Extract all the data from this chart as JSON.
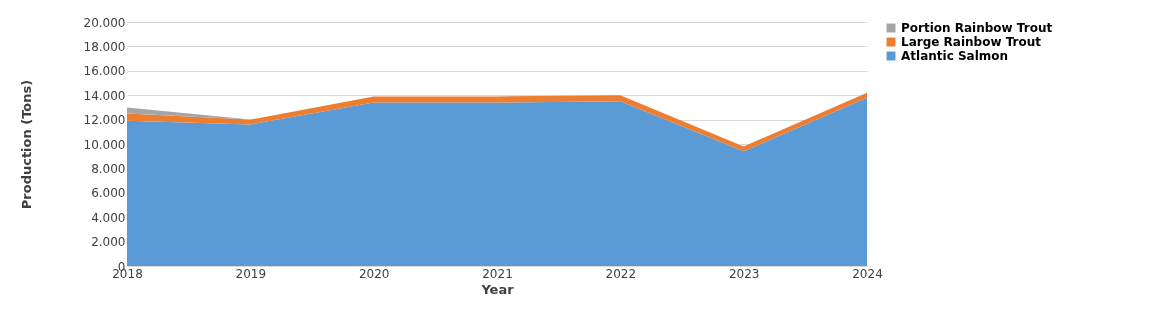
{
  "chart_data": {
    "type": "area",
    "stacked": true,
    "xlabel": "Year",
    "ylabel": "Production (Tons)",
    "categories": [
      "2018",
      "2019",
      "2020",
      "2021",
      "2022",
      "2023",
      "2024"
    ],
    "series": [
      {
        "name": "Atlantic Salmon",
        "color": "#5b9bd5",
        "values": [
          11900,
          11600,
          13400,
          13400,
          13500,
          9400,
          13800
        ]
      },
      {
        "name": "Large Rainbow Trout",
        "color": "#ed7d31",
        "values": [
          600,
          400,
          500,
          500,
          500,
          400,
          400
        ]
      },
      {
        "name": "Portion Rainbow Trout",
        "color": "#a5a5a5",
        "values": [
          500,
          0,
          0,
          0,
          0,
          0,
          0
        ]
      }
    ],
    "ylim": [
      0,
      20000
    ],
    "yticks": [
      {
        "value": 0,
        "label": "0"
      },
      {
        "value": 2000,
        "label": "2.000"
      },
      {
        "value": 4000,
        "label": "4.000"
      },
      {
        "value": 6000,
        "label": "6.000"
      },
      {
        "value": 8000,
        "label": "8.000"
      },
      {
        "value": 10000,
        "label": "10.000"
      },
      {
        "value": 12000,
        "label": "12.000"
      },
      {
        "value": 14000,
        "label": "14.000"
      },
      {
        "value": 16000,
        "label": "16.000"
      },
      {
        "value": 18000,
        "label": "18.000"
      },
      {
        "value": 20000,
        "label": "20.000"
      }
    ],
    "grid": "y",
    "legend": "right"
  }
}
